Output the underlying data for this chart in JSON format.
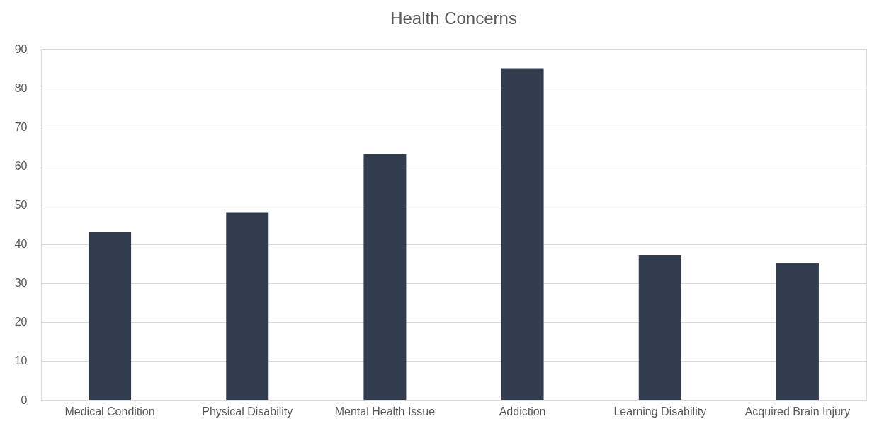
{
  "chart_data": {
    "type": "bar",
    "title": "Health Concerns",
    "categories": [
      "Medical Condition",
      "Physical Disability",
      "Mental Health Issue",
      "Addiction",
      "Learning Disability",
      "Acquired Brain Injury"
    ],
    "values": [
      43,
      48,
      63,
      85,
      37,
      35
    ],
    "color": "#323c4f",
    "ylim": [
      0,
      90
    ],
    "yticks": [
      0,
      10,
      20,
      30,
      40,
      50,
      60,
      70,
      80,
      90
    ],
    "grid": "y"
  }
}
